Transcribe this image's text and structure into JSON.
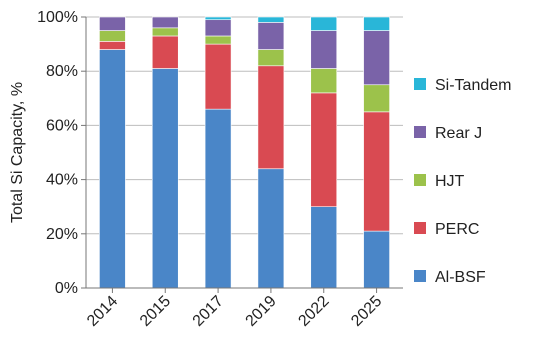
{
  "chart_data": {
    "type": "bar",
    "stacked": true,
    "ylabel": "Total Si Capacity, %",
    "xlabel": "",
    "ylim": [
      0,
      100
    ],
    "y_tick_labels": [
      "0%",
      "20%",
      "40%",
      "60%",
      "80%",
      "100%"
    ],
    "y_ticks": [
      0,
      20,
      40,
      60,
      80,
      100
    ],
    "grid": true,
    "legend_position": "right",
    "categories": [
      "2014",
      "2015",
      "2017",
      "2019",
      "2022",
      "2025"
    ],
    "series": [
      {
        "name": "Al-BSF",
        "color": "#4a86c8",
        "values": [
          88,
          81,
          66,
          44,
          30,
          21
        ]
      },
      {
        "name": "PERC",
        "color": "#d94a52",
        "values": [
          3,
          12,
          24,
          38,
          42,
          44
        ]
      },
      {
        "name": "HJT",
        "color": "#9cc24b",
        "values": [
          4,
          3,
          3,
          6,
          9,
          10
        ]
      },
      {
        "name": "Rear J",
        "color": "#7a63a8",
        "values": [
          5,
          4,
          6,
          10,
          14,
          20
        ]
      },
      {
        "name": "Si-Tandem",
        "color": "#29b6d8",
        "values": [
          0,
          0,
          1,
          2,
          5,
          5
        ]
      }
    ]
  }
}
